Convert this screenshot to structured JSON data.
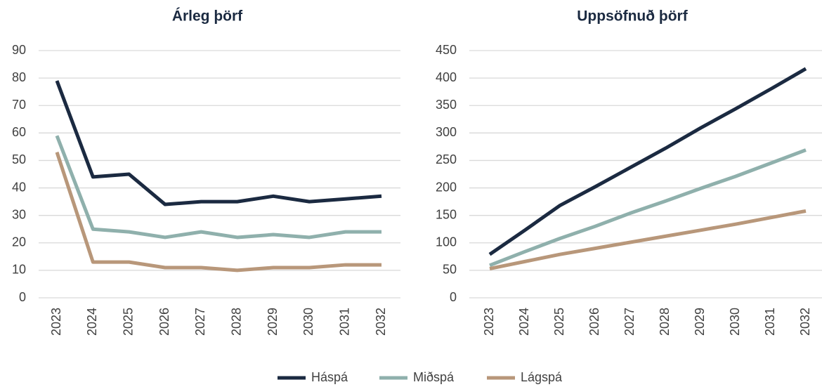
{
  "chart_data": [
    {
      "type": "line",
      "title": "Árleg þörf",
      "categories": [
        "2023",
        "2024",
        "2025",
        "2026",
        "2027",
        "2028",
        "2029",
        "2030",
        "2031",
        "2032"
      ],
      "series": [
        {
          "name": "Háspá",
          "color": "#1b2a41",
          "values": [
            79,
            44,
            45,
            34,
            35,
            35,
            37,
            35,
            36,
            37
          ]
        },
        {
          "name": "Miðspá",
          "color": "#8fb0ac",
          "values": [
            59,
            25,
            24,
            22,
            24,
            22,
            23,
            22,
            24,
            24
          ]
        },
        {
          "name": "Lágspá",
          "color": "#b8977a",
          "values": [
            53,
            13,
            13,
            11,
            11,
            10,
            11,
            11,
            12,
            12
          ]
        }
      ],
      "ylim": [
        0,
        90
      ],
      "yticks": [
        0,
        10,
        20,
        30,
        40,
        50,
        60,
        70,
        80,
        90
      ],
      "grid": true
    },
    {
      "type": "line",
      "title": "Uppsöfnuð þörf",
      "categories": [
        "2023",
        "2024",
        "2025",
        "2026",
        "2027",
        "2028",
        "2029",
        "2030",
        "2031",
        "2032"
      ],
      "series": [
        {
          "name": "Háspá",
          "color": "#1b2a41",
          "values": [
            79,
            123,
            168,
            202,
            237,
            272,
            309,
            344,
            380,
            417
          ]
        },
        {
          "name": "Miðspá",
          "color": "#8fb0ac",
          "values": [
            59,
            84,
            108,
            130,
            154,
            176,
            199,
            221,
            245,
            269
          ]
        },
        {
          "name": "Lágspá",
          "color": "#b8977a",
          "values": [
            53,
            66,
            79,
            90,
            101,
            112,
            123,
            134,
            146,
            158
          ]
        }
      ],
      "ylim": [
        0,
        450
      ],
      "yticks": [
        0,
        50,
        100,
        150,
        200,
        250,
        300,
        350,
        400,
        450
      ],
      "grid": true
    }
  ]
}
